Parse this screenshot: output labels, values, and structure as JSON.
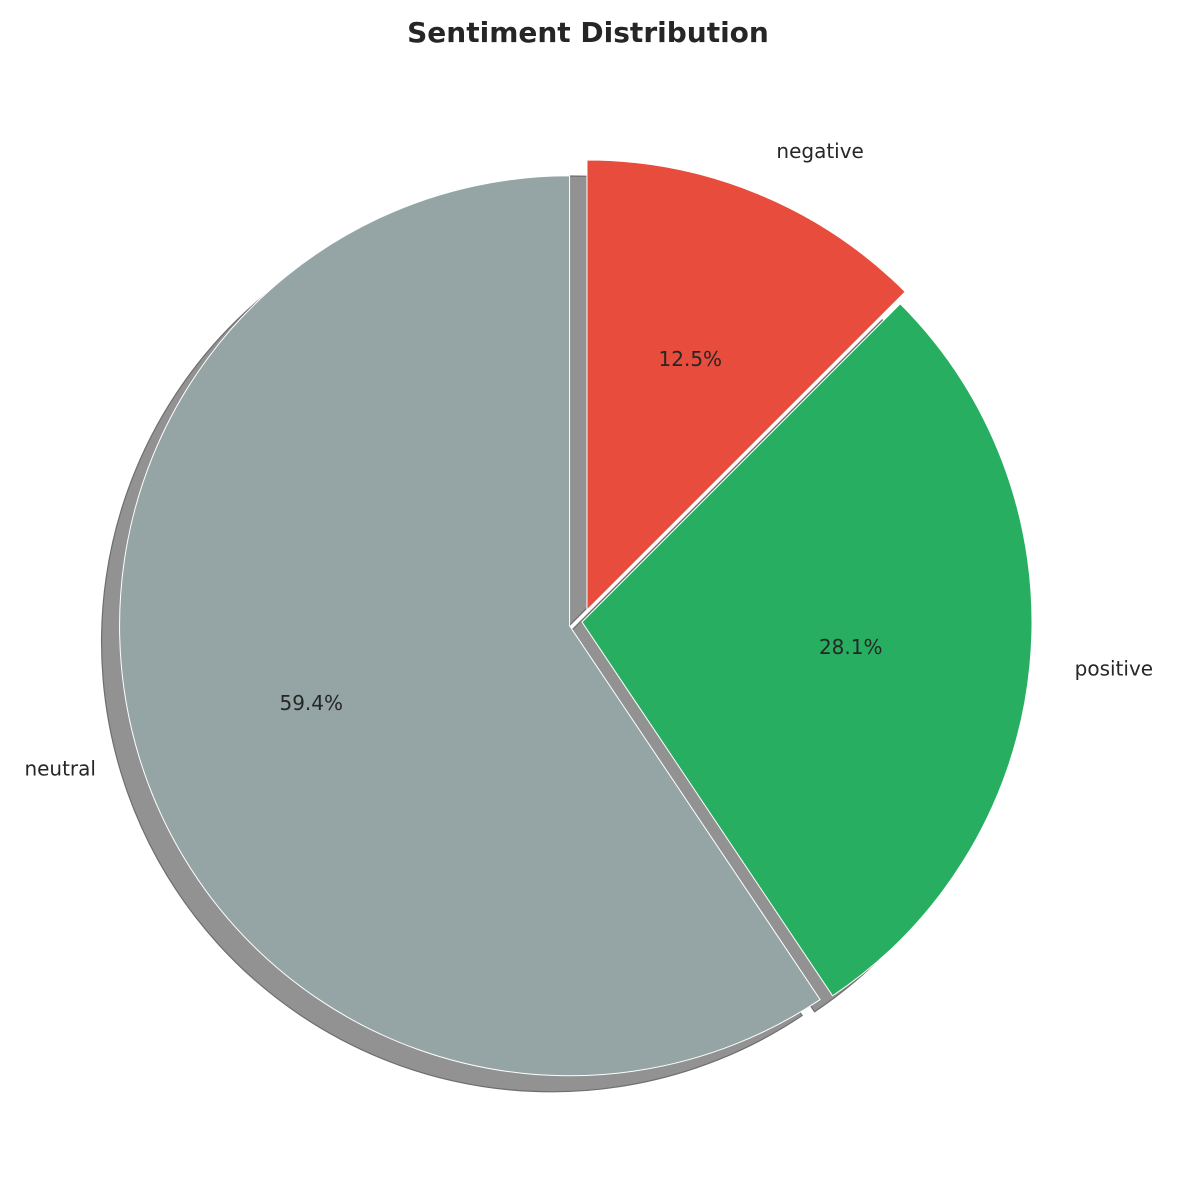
{
  "chart_data": {
    "type": "pie",
    "title": "Sentiment Distribution",
    "slices": [
      {
        "label": "negative",
        "value": 12.5,
        "pct_label": "12.5%",
        "color": "#e74c3c",
        "explode": true
      },
      {
        "label": "positive",
        "value": 28.1,
        "pct_label": "28.1%",
        "color": "#27ae60",
        "explode": false
      },
      {
        "label": "neutral",
        "value": 59.4,
        "pct_label": "59.4%",
        "color": "#95a5a6",
        "explode": true
      }
    ],
    "start_angle_deg": 90,
    "direction": "clockwise",
    "shadow": true,
    "shadow_color": "#929292",
    "edge_color": "#ffffff"
  }
}
